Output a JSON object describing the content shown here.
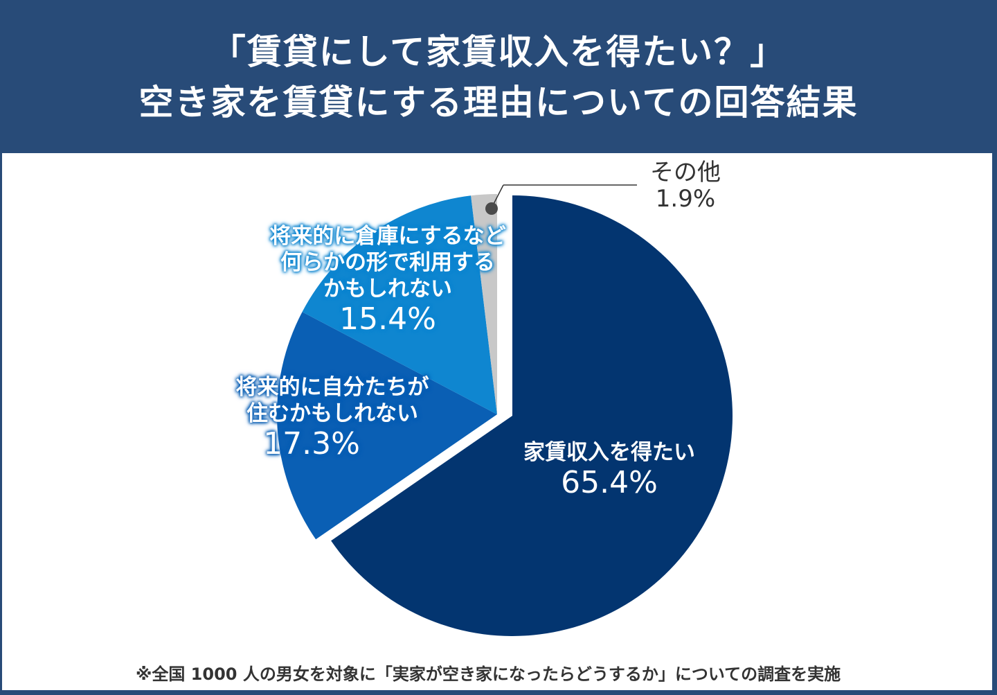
{
  "header": {
    "title_line1": "「賃貸にして家賃収入を得たい？」",
    "title_line2": "空き家を賃貸にする理由についての回答結果"
  },
  "labels": {
    "rent_income": {
      "text": "家賃収入を得たい",
      "percent": "65.4%"
    },
    "live_future": {
      "text_line1": "将来的に自分たちが",
      "text_line2": "住むかもしれない",
      "percent": "17.3%"
    },
    "storage": {
      "text_line1": "将来的に倉庫にするなど",
      "text_line2": "何らかの形で利用する",
      "text_line3": "かもしれない",
      "percent": "15.4%"
    },
    "other": {
      "text": "その他",
      "percent": "1.9%"
    }
  },
  "footnote": "※全国 1000 人の男女を対象に「実家が空き家になったらどうするか」についての調査を実施",
  "colors": {
    "header_bg": "#284b78",
    "rent_income": "#033570",
    "live_future": "#0a5fb4",
    "storage": "#0f86d0",
    "other": "#c8c8c8"
  },
  "chart_data": {
    "type": "pie",
    "title": "「賃貸にして家賃収入を得たい？」空き家を賃貸にする理由についての回答結果",
    "categories": [
      "家賃収入を得たい",
      "将来的に自分たちが住むかもしれない",
      "将来的に倉庫にするなど何らかの形で利用するかもしれない",
      "その他"
    ],
    "values": [
      65.4,
      17.3,
      15.4,
      1.9
    ],
    "unit": "%",
    "exploded": [
      "家賃収入を得たい"
    ],
    "start_angle": "12 o'clock, clockwise",
    "note": "※全国 1000 人の男女を対象に「実家が空き家になったらどうするか」についての調査を実施"
  }
}
